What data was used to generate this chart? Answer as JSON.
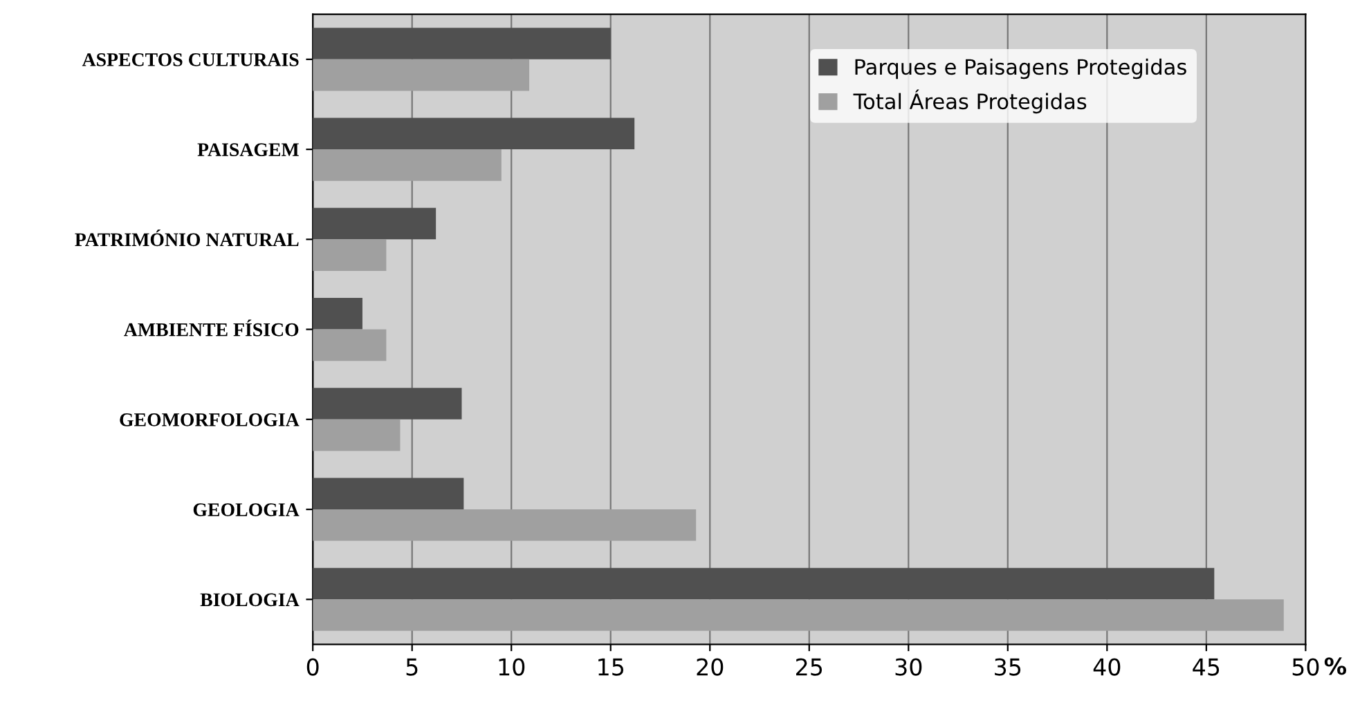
{
  "chart_data": {
    "type": "bar",
    "orientation": "horizontal",
    "xlabel": "%",
    "categories": [
      "ASPECTOS CULTURAIS",
      "PAISAGEM",
      "PATRIMÓNIO NATURAL",
      "AMBIENTE FÍSICO",
      "GEOMORFOLOGIA",
      "GEOLOGIA",
      "BIOLOGIA"
    ],
    "series": [
      {
        "name": "Parques e Paisagens Protegidas",
        "color": "#505050",
        "values": [
          15.0,
          16.2,
          6.2,
          2.5,
          7.5,
          7.6,
          45.4
        ]
      },
      {
        "name": "Total Áreas Protegidas",
        "color": "#a0a0a0",
        "values": [
          10.9,
          9.5,
          3.7,
          3.7,
          4.4,
          19.3,
          48.9
        ]
      }
    ],
    "xlim": [
      0,
      50
    ],
    "xticks": [
      0,
      5,
      10,
      15,
      20,
      25,
      30,
      35,
      40,
      45,
      50
    ],
    "grid": "x",
    "legend": "top right"
  }
}
